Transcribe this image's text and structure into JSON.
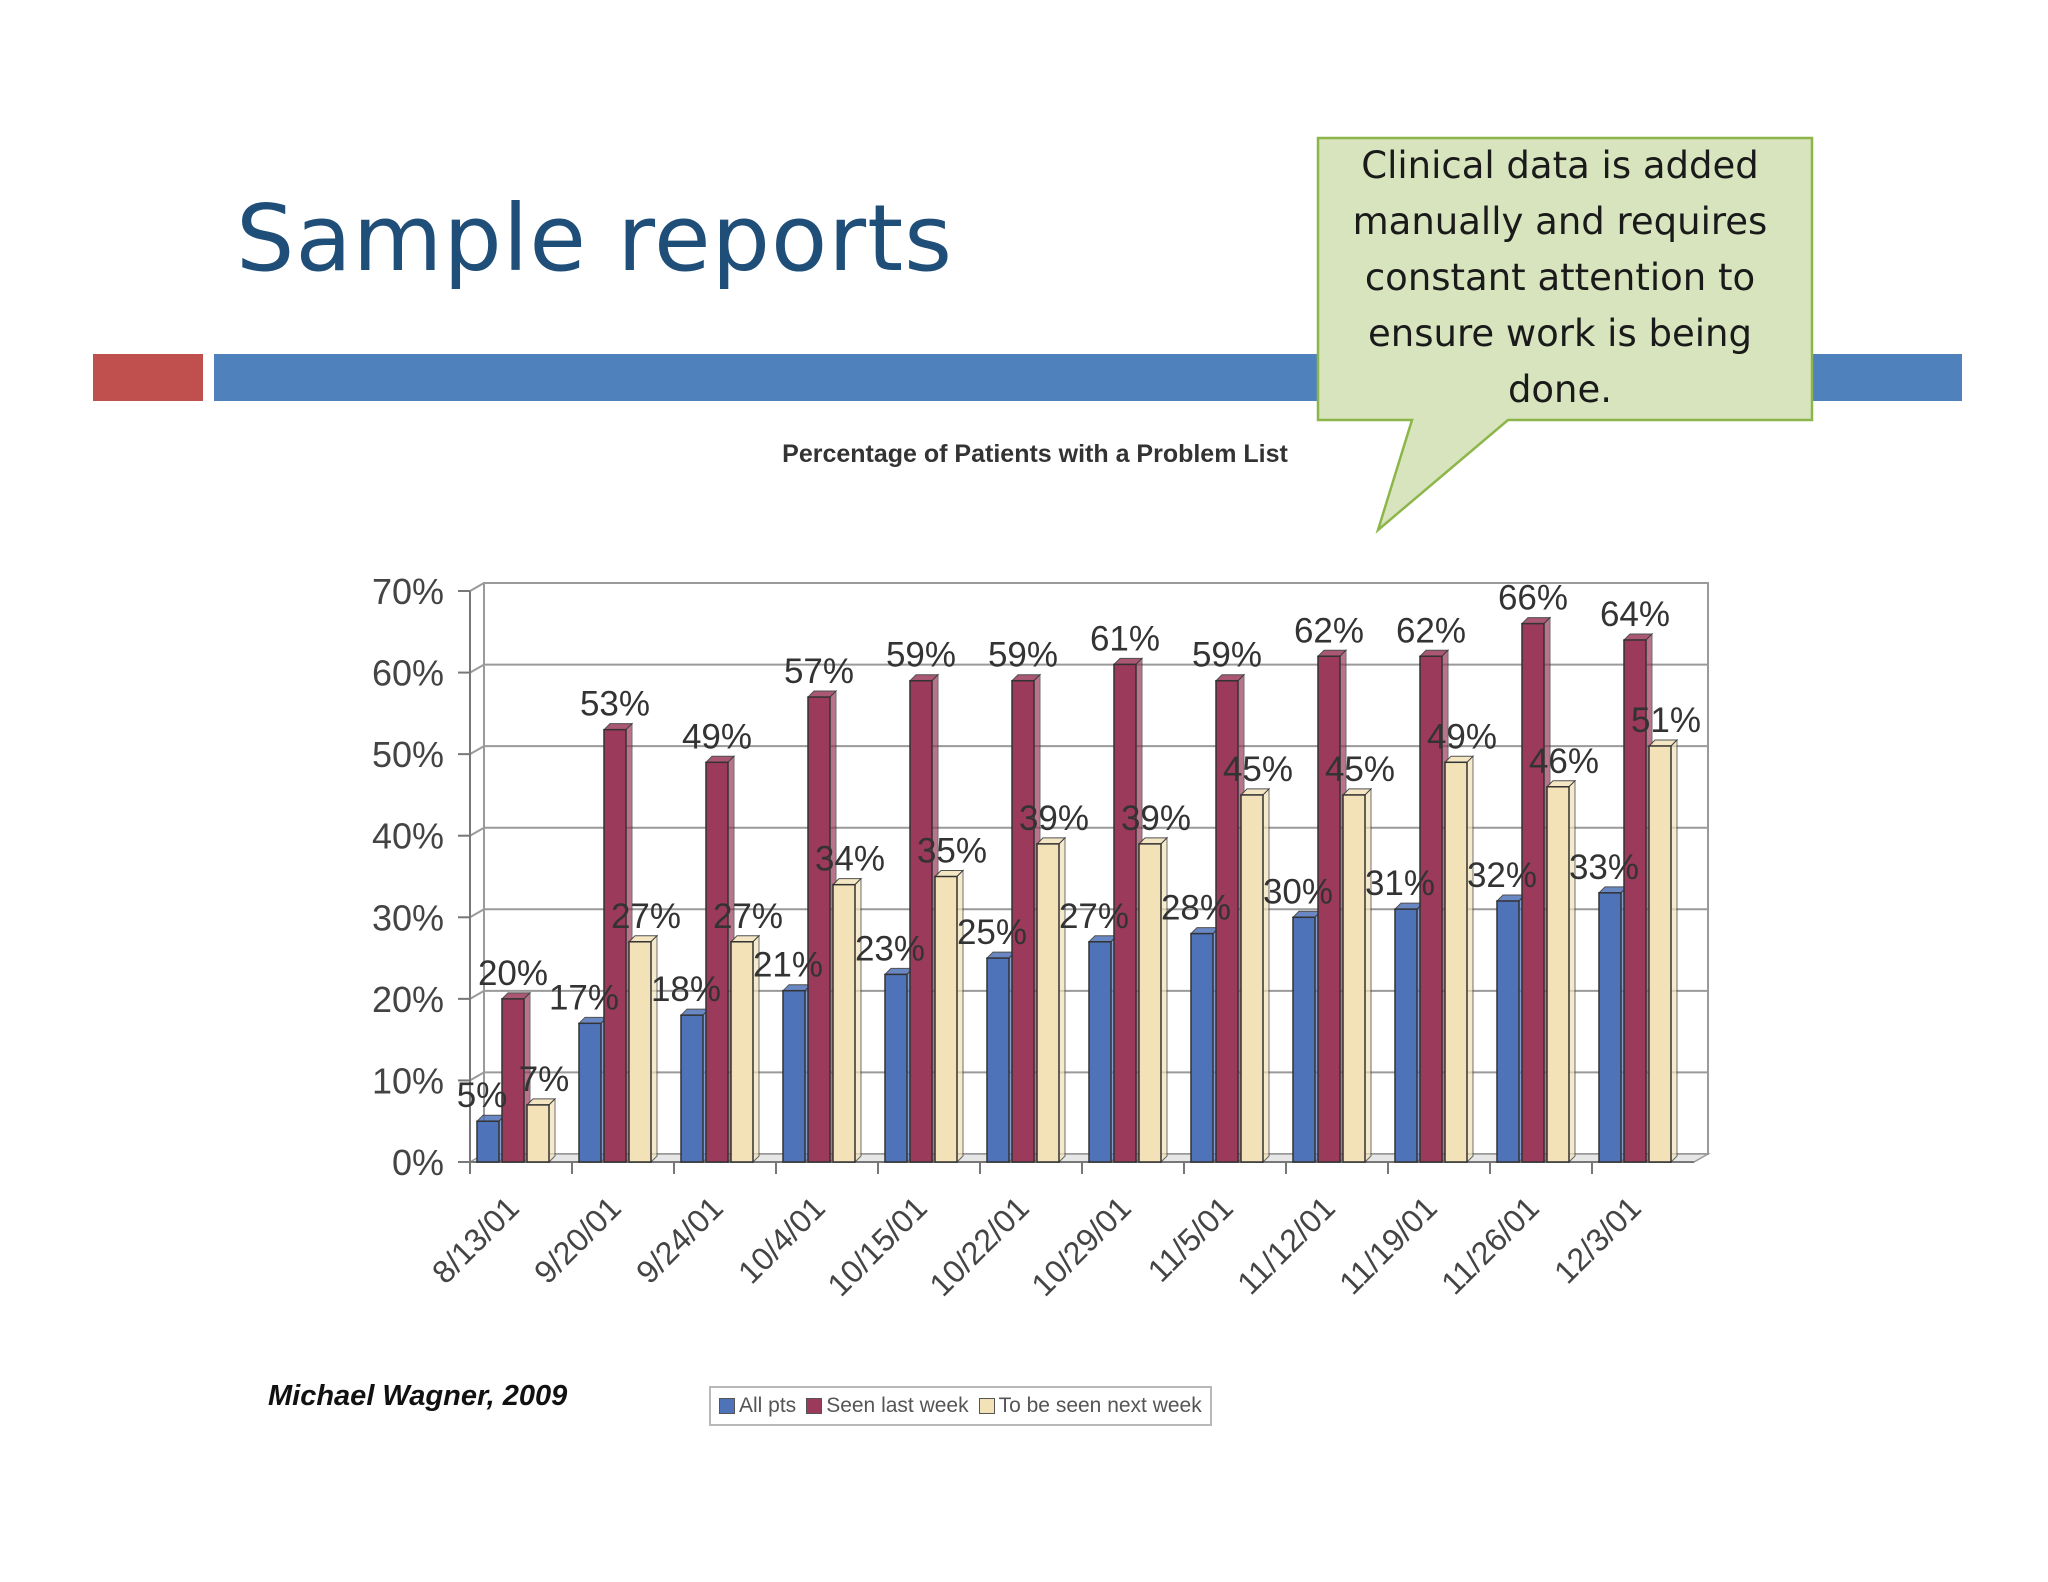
{
  "slide": {
    "title": "Sample reports",
    "callout_text": "Clinical data is added manually and requires constant attention to ensure work is being done.",
    "credit": "Michael Wagner, 2009"
  },
  "colors": {
    "title": "#1f4e79",
    "accent_red": "#c0504d",
    "accent_blue": "#4f81bd",
    "callout_fill": "#d7e4bd",
    "callout_border": "#8db64a"
  },
  "chart_data": {
    "type": "bar",
    "title": "Percentage of Patients with a Problem List",
    "categories": [
      "8/13/01",
      "9/20/01",
      "9/24/01",
      "10/4/01",
      "10/15/01",
      "10/22/01",
      "10/29/01",
      "11/5/01",
      "11/12/01",
      "11/19/01",
      "11/26/01",
      "12/3/01"
    ],
    "series": [
      {
        "name": "All pts",
        "color": "#4f73b8",
        "values": [
          5,
          17,
          18,
          21,
          23,
          25,
          27,
          28,
          30,
          31,
          32,
          33
        ]
      },
      {
        "name": "Seen last week",
        "color": "#9b3a5a",
        "values": [
          20,
          53,
          49,
          57,
          59,
          59,
          61,
          59,
          62,
          62,
          66,
          64
        ]
      },
      {
        "name": "To be seen next week",
        "color": "#f3e2b8",
        "values": [
          7,
          27,
          27,
          34,
          35,
          39,
          39,
          45,
          45,
          49,
          46,
          51
        ]
      }
    ],
    "y_ticks": [
      "0%",
      "10%",
      "20%",
      "30%",
      "40%",
      "50%",
      "60%",
      "70%"
    ],
    "data_labels": [
      [
        "5%",
        "17%",
        "18%",
        "21%",
        "23%",
        "25%",
        "27%",
        "28%",
        "30%",
        "31%",
        "32%",
        "33%"
      ],
      [
        "20%",
        "53%",
        "49%",
        "57%",
        "59%",
        "59%",
        "61%",
        "59%",
        "62%",
        "62%",
        "66%",
        "64%"
      ],
      [
        "7%",
        "27%",
        "27%",
        "34%",
        "35%",
        "39%",
        "39%",
        "45%",
        "45%",
        "49%",
        "46%",
        "51%"
      ]
    ],
    "ylim": [
      0,
      70
    ],
    "grid": true,
    "legend_position": "bottom"
  }
}
